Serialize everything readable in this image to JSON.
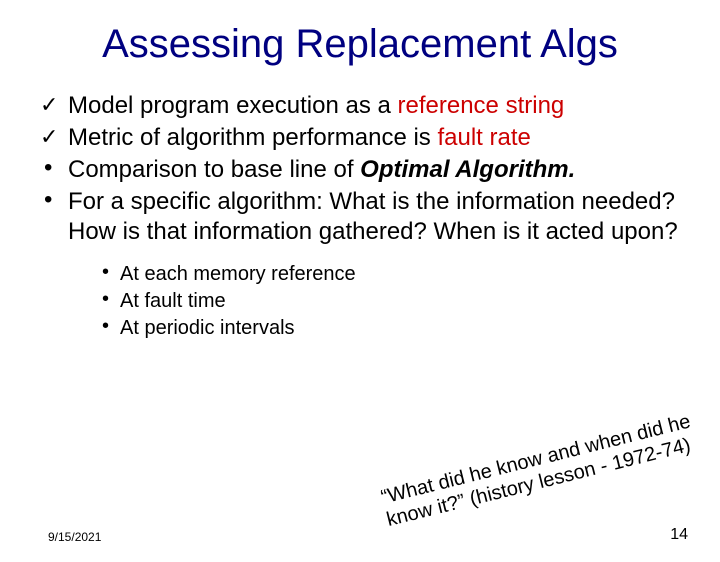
{
  "title": "Assessing Replacement Algs",
  "bullets": {
    "b0_pre": "Model program execution as a ",
    "b0_red": "reference string",
    "b1_pre": "Metric of algorithm performance is ",
    "b1_red": "fault rate",
    "b2_pre": "Comparison to base line of ",
    "b2_bi": "Optimal Algorithm.",
    "b3": "For a specific algorithm: What is the information needed? How is that information gathered? When is it acted upon?"
  },
  "sub": {
    "s0": "At each memory reference",
    "s1": "At fault time",
    "s2": "At periodic intervals"
  },
  "quote": "“What did he know and when did he know it?” (history lesson - 1972-74)",
  "footer": {
    "date": "9/15/2021",
    "page": "14"
  },
  "colors": {
    "title": "#000080",
    "red": "#cc0000",
    "text": "#000000",
    "bg": "#ffffff"
  }
}
